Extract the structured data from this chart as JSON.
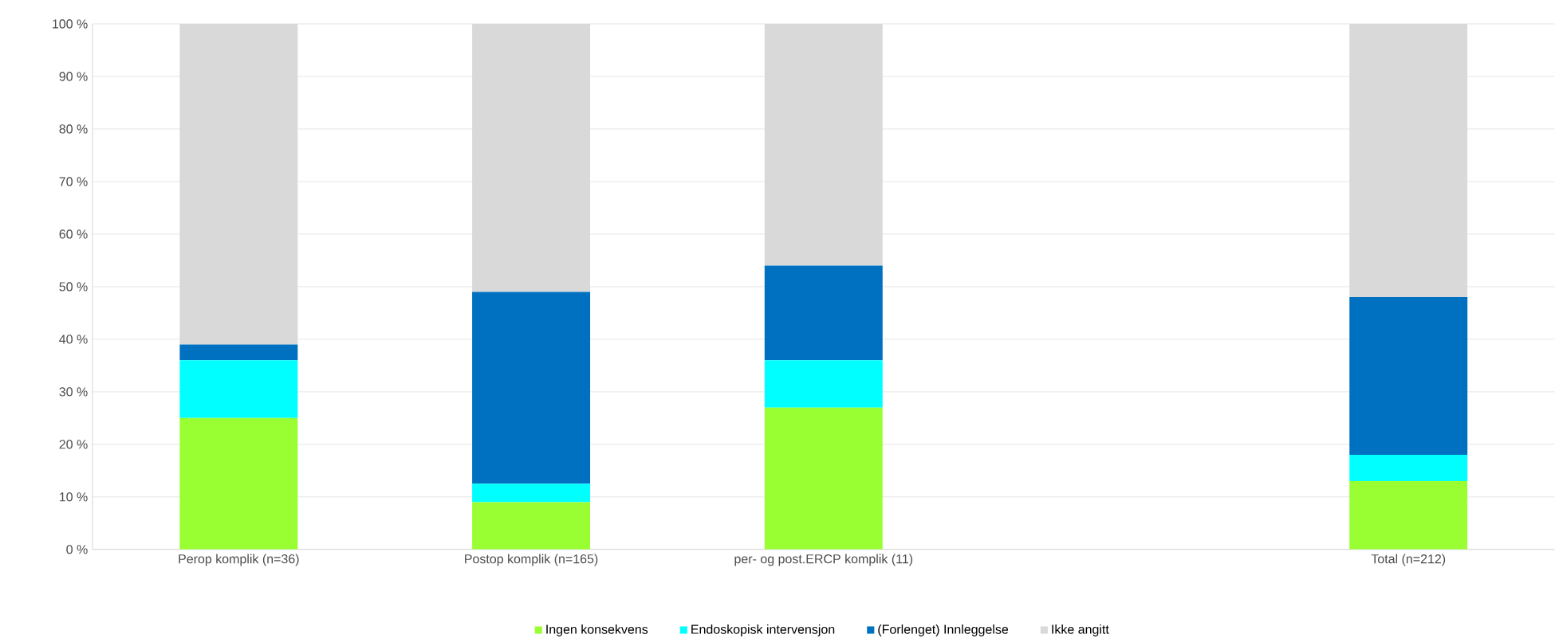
{
  "chart_data": {
    "type": "bar",
    "stacked": true,
    "categories": [
      "Perop komplik (n=36)",
      "Postop komplik (n=165)",
      "per- og post.ERCP komplik (11)",
      null,
      "Total (n=212)"
    ],
    "series": [
      {
        "name": "Ingen konsekvens",
        "color": "#99ff33",
        "values": [
          25,
          9,
          27,
          null,
          13
        ]
      },
      {
        "name": "Endoskopisk intervensjon",
        "color": "#00ffff",
        "values": [
          11,
          3.5,
          9,
          null,
          5
        ]
      },
      {
        "name": "(Forlenget) Innleggelse",
        "color": "#0070c0",
        "values": [
          3,
          36.5,
          18,
          null,
          30
        ]
      },
      {
        "name": "Ikke angitt",
        "color": "#d9d9d9",
        "values": [
          61,
          51,
          46,
          null,
          52
        ]
      }
    ],
    "ylim": [
      0,
      100
    ],
    "yticks": [
      {
        "value": 0,
        "label": "0 %"
      },
      {
        "value": 10,
        "label": "10 %"
      },
      {
        "value": 20,
        "label": "20 %"
      },
      {
        "value": 30,
        "label": "30 %"
      },
      {
        "value": 40,
        "label": "40 %"
      },
      {
        "value": 50,
        "label": "50 %"
      },
      {
        "value": 60,
        "label": "60 %"
      },
      {
        "value": 70,
        "label": "70 %"
      },
      {
        "value": 80,
        "label": "80 %"
      },
      {
        "value": 90,
        "label": "90 %"
      },
      {
        "value": 100,
        "label": "100 %"
      }
    ],
    "grid": "y",
    "legend": "bottom"
  }
}
